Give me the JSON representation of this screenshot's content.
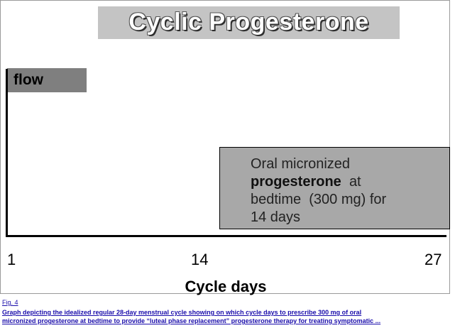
{
  "figure": {
    "title": "Cyclic Progesterone",
    "flow_label": "flow",
    "progesterone_box": {
      "line1": "Oral micronized",
      "line2_bold": "progesterone",
      "line2_rest": "at",
      "line3": "bedtime  (300 mg) for",
      "line4": "14 days"
    },
    "x_ticks": [
      "1",
      "14",
      "27"
    ],
    "x_axis_label": "Cycle days",
    "colors": {
      "title_bg": "#c4c4c4",
      "flow_bg": "#7f7f7f",
      "progesterone_bg": "#a8a8a8",
      "link": "#1a0dab"
    }
  },
  "caption": {
    "fig_label": "Fig. 4",
    "line1": "Graph depicting the idealized regular 28-day menstrual cycle showing on which cycle days to prescribe 300 mg of oral",
    "line2": "micronized progesterone at bedtime to provide “luteal phase replacement” progesterone therapy for treating symptomatic ..."
  }
}
